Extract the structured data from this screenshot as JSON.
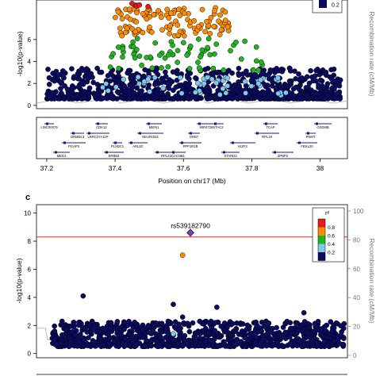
{
  "chart_data": [
    {
      "type": "scatter",
      "panel_label": "",
      "title": "",
      "xlabel": "Position on chr17 (Mb)",
      "ylabel": "-log10(p-value)",
      "y2label": "Recombination rate (cM/Mb)",
      "xlim": [
        37.17,
        38.08
      ],
      "ylim": [
        -0.3,
        9.6
      ],
      "x_ticks": [
        "37.2",
        "37.4",
        "37.6",
        "37.8",
        "38"
      ],
      "x_tick_values": [
        37.2,
        37.4,
        37.6,
        37.8,
        38.0
      ],
      "y_ticks": [
        "0",
        "2",
        "4",
        "6"
      ],
      "y_tick_values": [
        0,
        2,
        4,
        6
      ],
      "legend": {
        "placement": "top-right",
        "values": [
          "0.2"
        ]
      },
      "colors": {
        "r2_1": "#e41a1c",
        "r2_08": "#ff8c00",
        "r2_06": "#1fb51f",
        "r2_04": "#80c8ee",
        "r2_02": "#0b0b62"
      },
      "series": [
        {
          "r2_class": "0.8-1.0",
          "color": "#e41a1c",
          "x_range": [
            37.445,
            37.53
          ],
          "y_range": [
            9.0,
            9.3
          ],
          "n": 6
        },
        {
          "r2_class": "0.6-0.8",
          "color": "#ff8c00",
          "x_range": [
            37.4,
            37.74
          ],
          "y_range": [
            6.3,
            8.9
          ],
          "n": 120
        },
        {
          "r2_class": "0.4-0.6",
          "color": "#1fb51f",
          "x_range": [
            37.38,
            37.84
          ],
          "y_range": [
            3.2,
            6.1
          ],
          "n": 70
        },
        {
          "r2_class": "0.2-0.4",
          "color": "#80c8ee",
          "x_range": [
            37.36,
            37.9
          ],
          "y_range": [
            0.9,
            2.6
          ],
          "n": 50
        },
        {
          "r2_class": "0.0-0.2",
          "color": "#0b0b62",
          "x_range": [
            37.2,
            38.06
          ],
          "y_range": [
            0.6,
            3.4
          ],
          "n": 900
        }
      ],
      "genes": [
        "LINC00079",
        "LRRC37A11P",
        "ARL5C",
        "CACNB1",
        "STAC2",
        "RPL19",
        "FBXL20",
        "MED1",
        "CDK12",
        "NEUROD2",
        "PPP1R1B",
        "STARD3",
        "TCAP",
        "PNMT",
        "PGAP3",
        "ERBB2",
        "MIEN1",
        "GRB7",
        "IKZF3",
        "ZPBP2",
        "GSDMB",
        "ORMDL3",
        "PLXDC1",
        "RPL23",
        "MIR4728"
      ]
    },
    {
      "type": "scatter",
      "panel_label": "c",
      "title": "",
      "xlabel": "",
      "ylabel": "-log10(p-value)",
      "y2label": "Recombination rate (cM/Mb)",
      "ylim": [
        -0.3,
        10.6
      ],
      "y_ticks": [
        "0",
        "2",
        "4",
        "6",
        "8",
        "10"
      ],
      "y_tick_values": [
        0,
        2,
        4,
        6,
        8,
        10
      ],
      "y2_ticks": [
        "0",
        "20",
        "40",
        "60",
        "80",
        "100"
      ],
      "y2_tick_values": [
        0,
        20,
        40,
        60,
        80,
        100
      ],
      "threshold_line": {
        "y": 8.3,
        "color": "#ff3b3b"
      },
      "lead_snp": {
        "label": "rs539182790",
        "y": 8.6,
        "color": "#7a3fb0"
      },
      "legend": {
        "placement": "top-right",
        "title": "r²",
        "values": [
          "0.8",
          "0.6",
          "0.4",
          "0.2"
        ]
      },
      "colors": {
        "r2_08": "#ff8c00",
        "r2_04": "#80c8ee",
        "r2_02": "#0b0b62"
      },
      "series": [
        {
          "r2_class": "0.6-0.8",
          "color": "#ff8c00",
          "points": [
            [
              0.47,
              7.0
            ]
          ]
        },
        {
          "r2_class": "0.2-0.4",
          "color": "#80c8ee",
          "points": [
            [
              0.44,
              1.4
            ]
          ]
        },
        {
          "r2_class": "0.0-0.2",
          "color": "#0b0b62",
          "x_range": [
            0,
            1
          ],
          "y_range": [
            0.5,
            2.3
          ],
          "n": 900,
          "outliers": [
            [
              0.15,
              4.1
            ],
            [
              0.44,
              3.5
            ],
            [
              0.58,
              3.3
            ],
            [
              0.47,
              2.6
            ],
            [
              0.86,
              2.9
            ]
          ]
        }
      ]
    }
  ]
}
